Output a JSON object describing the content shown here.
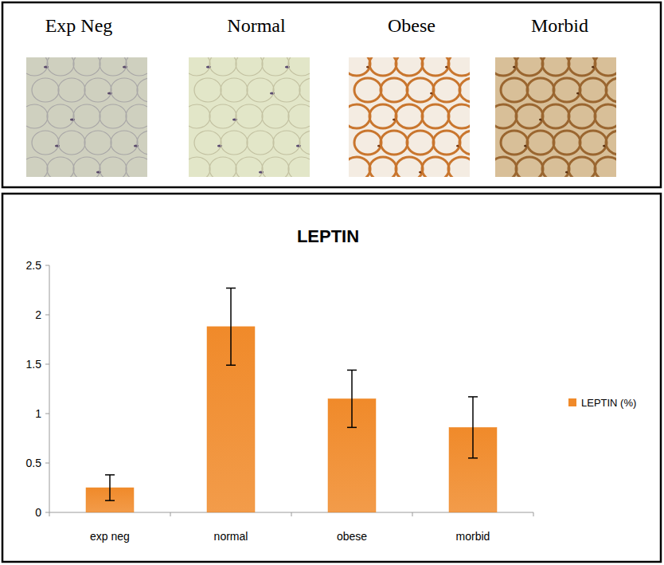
{
  "image_panel": {
    "labels": [
      "Exp Neg",
      "Normal",
      "Obese",
      "Morbid"
    ]
  },
  "chart_data": {
    "type": "bar",
    "title": "LEPTIN",
    "categories": [
      "exp neg",
      "normal",
      "obese",
      "morbid"
    ],
    "series": [
      {
        "name": "LEPTIN (%)",
        "color": "#f08a2a",
        "values": [
          0.25,
          1.88,
          1.15,
          0.86
        ],
        "errors": [
          0.13,
          0.39,
          0.29,
          0.31
        ]
      }
    ],
    "ylim": [
      0,
      2.5
    ],
    "yticks": [
      0,
      0.5,
      1,
      1.5,
      2,
      2.5
    ],
    "grid": false,
    "legend": "right"
  }
}
